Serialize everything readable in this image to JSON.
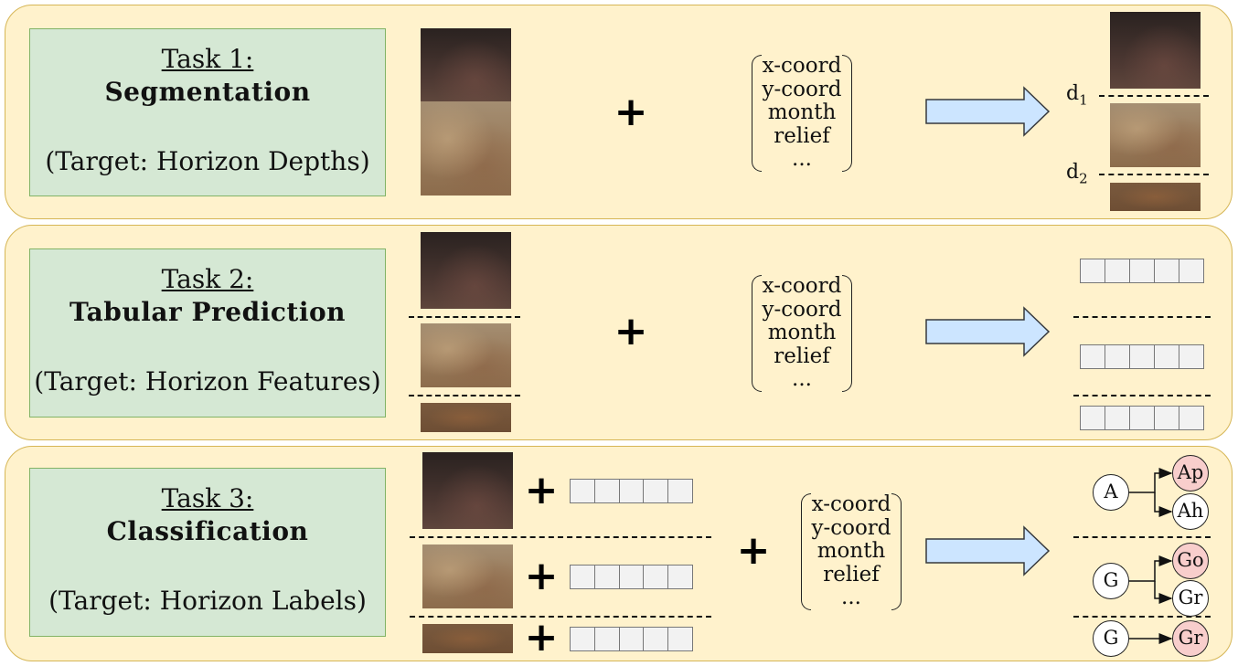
{
  "tasks": [
    {
      "title": "Task 1:",
      "name": "Segmentation",
      "target": "(Target: Horizon Depths)"
    },
    {
      "title": "Task 2:",
      "name": "Tabular Prediction",
      "target": "(Target: Horizon Features)"
    },
    {
      "title": "Task 3:",
      "name": "Classification",
      "target": "(Target: Horizon Labels)"
    }
  ],
  "covariates": {
    "lines": [
      "x-coord",
      "y-coord",
      "month",
      "relief",
      "..."
    ]
  },
  "plus_symbol": "+",
  "depth_labels": {
    "d1": "d",
    "d1_sub": "1",
    "d2": "d",
    "d2_sub": "2"
  },
  "nodes": {
    "a": "A",
    "ap": "Ap",
    "ah": "Ah",
    "g1": "G",
    "go": "Go",
    "gr1": "Gr",
    "g2": "G",
    "gr2": "Gr"
  },
  "colors": {
    "panel_fill": "#fff2cc",
    "panel_border": "#d6b656",
    "task_fill": "#d5e8d4",
    "task_border": "#82b366",
    "arrow_fill": "#cce5ff",
    "arrow_border": "#36393d",
    "highlight_node": "#f8cecc"
  }
}
